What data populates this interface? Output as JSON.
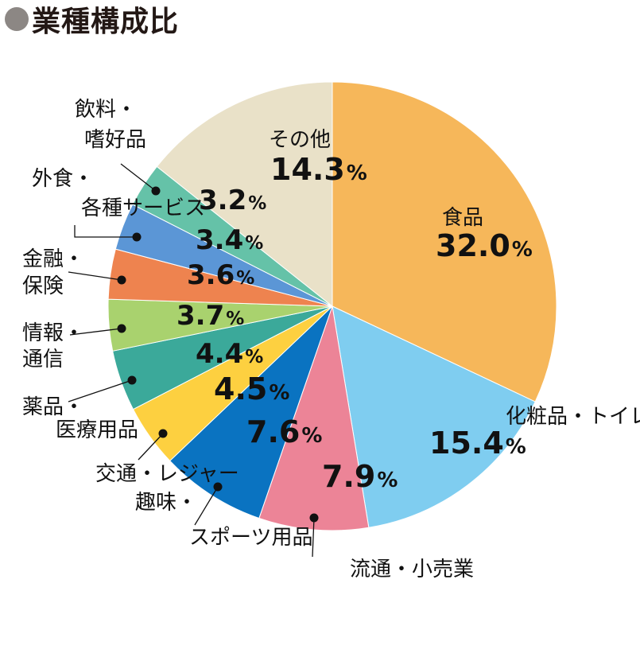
{
  "title": "業種構成比",
  "chart_data": {
    "type": "pie",
    "title": "業種構成比",
    "start_angle_deg": 0,
    "direction": "clockwise",
    "slices": [
      {
        "label": [
          "食品"
        ],
        "value": 32.0,
        "display": "32.0",
        "color": "#f6b75a"
      },
      {
        "label": [
          "化粧品・トイレタリー"
        ],
        "value": 15.4,
        "display": "15.4",
        "color": "#7fcdf0"
      },
      {
        "label": [
          "流通・小売業"
        ],
        "value": 7.9,
        "display": "7.9",
        "color": "#ec8497"
      },
      {
        "label": [
          "趣味・",
          "スポーツ用品"
        ],
        "value": 7.6,
        "display": "7.6",
        "color": "#0a73c1"
      },
      {
        "label": [
          "交通・レジャー"
        ],
        "value": 4.5,
        "display": "4.5",
        "color": "#fdd040"
      },
      {
        "label": [
          "薬品・",
          "医療用品"
        ],
        "value": 4.4,
        "display": "4.4",
        "color": "#3ba99a"
      },
      {
        "label": [
          "情報・",
          "通信"
        ],
        "value": 3.7,
        "display": "3.7",
        "color": "#a9d26e"
      },
      {
        "label": [
          "金融・",
          "保険"
        ],
        "value": 3.6,
        "display": "3.6",
        "color": "#ee834f"
      },
      {
        "label": [
          "外食・",
          "各種サービス"
        ],
        "value": 3.4,
        "display": "3.4",
        "color": "#5b96d6"
      },
      {
        "label": [
          "飲料・",
          "嗜好品"
        ],
        "value": 3.2,
        "display": "3.2",
        "color": "#65c2a8"
      },
      {
        "label": [
          "その他"
        ],
        "value": 14.3,
        "display": "14.3",
        "color": "#e9e1c8"
      }
    ]
  }
}
